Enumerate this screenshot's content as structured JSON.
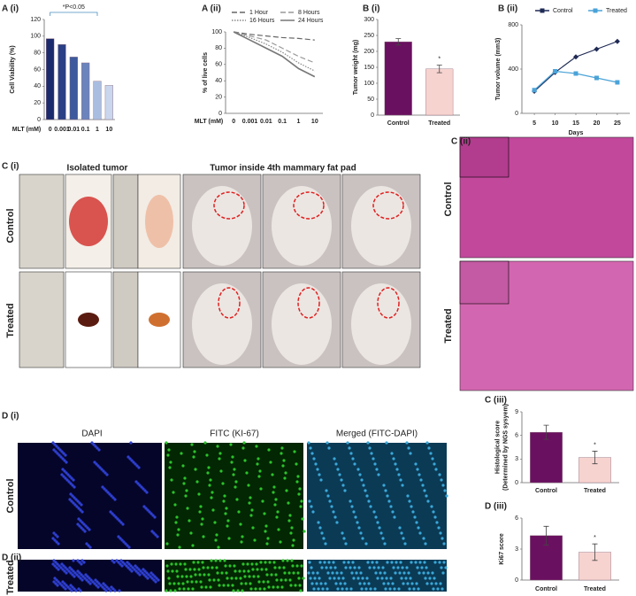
{
  "chart_data": [
    {
      "type": "bar",
      "title": "A (i)",
      "ylabel": [
        "Cell Viability (%)"
      ],
      "xlabel": "MLT (mM)",
      "categories": [
        "0",
        "0.001",
        "0.01",
        "0.1",
        "1",
        "10"
      ],
      "values": [
        97,
        90,
        75,
        68,
        46,
        41
      ],
      "colors": [
        "#1a2a6c",
        "#2a3f85",
        "#3d5a9e",
        "#6b84bd",
        "#a9bde0",
        "#c9d6ee"
      ],
      "ylim": [
        0,
        120
      ],
      "yticks": [
        0,
        20,
        40,
        60,
        80,
        100,
        120
      ],
      "annotation": "*P<0.05"
    },
    {
      "type": "line",
      "title": "A (ii)",
      "ylabel": [
        "% of live cells"
      ],
      "xlabel": "MLT (mM)",
      "categories": [
        "0",
        "0.001",
        "0.01",
        "0.1",
        "1",
        "10"
      ],
      "series": [
        {
          "name": "1 Hour",
          "color": "#666",
          "dash": "dashed",
          "values": [
            100,
            97,
            95,
            93,
            92,
            90
          ]
        },
        {
          "name": "8 Hours",
          "color": "#999",
          "dash": "dashed",
          "values": [
            100,
            95,
            90,
            80,
            70,
            62
          ]
        },
        {
          "name": "16 Hours",
          "color": "#888",
          "dash": "dotted",
          "values": [
            100,
            93,
            85,
            75,
            62,
            52
          ]
        },
        {
          "name": "24 Hours",
          "color": "#777",
          "dash": "solid",
          "values": [
            100,
            90,
            80,
            70,
            55,
            45
          ]
        }
      ],
      "ylim": [
        0,
        100
      ],
      "yticks": [
        0,
        20,
        40,
        60,
        80,
        100
      ]
    },
    {
      "type": "bar",
      "title": "B (i)",
      "ylabel": [
        "Tumor weight (mg)"
      ],
      "categories": [
        "Control",
        "Treated"
      ],
      "values": [
        230,
        145
      ],
      "errors": [
        10,
        12
      ],
      "colors": [
        "#6a1060",
        "#f7d3d0"
      ],
      "ylim": [
        0,
        300
      ],
      "yticks": [
        0,
        50,
        100,
        150,
        200,
        250,
        300
      ],
      "annotation": "*"
    },
    {
      "type": "line",
      "title": "B (ii)",
      "ylabel": [
        "Tumor volume (mm3)"
      ],
      "xlabel": "Days",
      "x": [
        5,
        10,
        15,
        20,
        25
      ],
      "series": [
        {
          "name": "Control",
          "color": "#1f2a55",
          "marker": "diamond",
          "values": [
            200,
            370,
            510,
            580,
            650
          ]
        },
        {
          "name": "Treated",
          "color": "#4aa3d8",
          "marker": "square",
          "values": [
            210,
            380,
            360,
            320,
            280
          ]
        }
      ],
      "xlim": [
        2,
        28
      ],
      "xticks": [
        5,
        10,
        15,
        20,
        25
      ],
      "ylim": [
        0,
        800
      ],
      "yticks": [
        0,
        400,
        800
      ]
    },
    {
      "type": "bar",
      "title": "C (iii)",
      "ylabel": [
        "Histological score",
        "(Determined by NGS sysyem)"
      ],
      "categories": [
        "Control",
        "Treated"
      ],
      "values": [
        6.4,
        3.2
      ],
      "errors": [
        0.9,
        0.8
      ],
      "colors": [
        "#6a1060",
        "#f7d3d0"
      ],
      "ylim": [
        0,
        9
      ],
      "yticks": [
        0,
        3,
        6,
        9
      ],
      "annotation": "*"
    },
    {
      "type": "bar",
      "title": "D (iii)",
      "ylabel": [
        "Ki67 score"
      ],
      "categories": [
        "Control",
        "Treated"
      ],
      "values": [
        4.3,
        2.7
      ],
      "errors": [
        0.9,
        0.8
      ],
      "colors": [
        "#6a1060",
        "#f7d3d0"
      ],
      "ylim": [
        0,
        6
      ],
      "yticks": [
        0,
        3,
        6
      ],
      "annotation": "*"
    }
  ],
  "panels": {
    "c_i": {
      "label": "C (i)",
      "heads": [
        "Isolated tumor",
        "Tumor inside 4th mammary fat pad"
      ],
      "rows": [
        "Control",
        "Treated"
      ]
    },
    "c_ii": {
      "label": "C (ii)",
      "rows": [
        "Control",
        "Treated"
      ]
    },
    "d": {
      "labels": [
        "D (i)",
        "D (ii)"
      ],
      "heads": [
        "DAPI",
        "FITC (KI-67)",
        "Merged (FITC-DAPI)"
      ],
      "rows": [
        "Control",
        "Treated"
      ]
    }
  }
}
